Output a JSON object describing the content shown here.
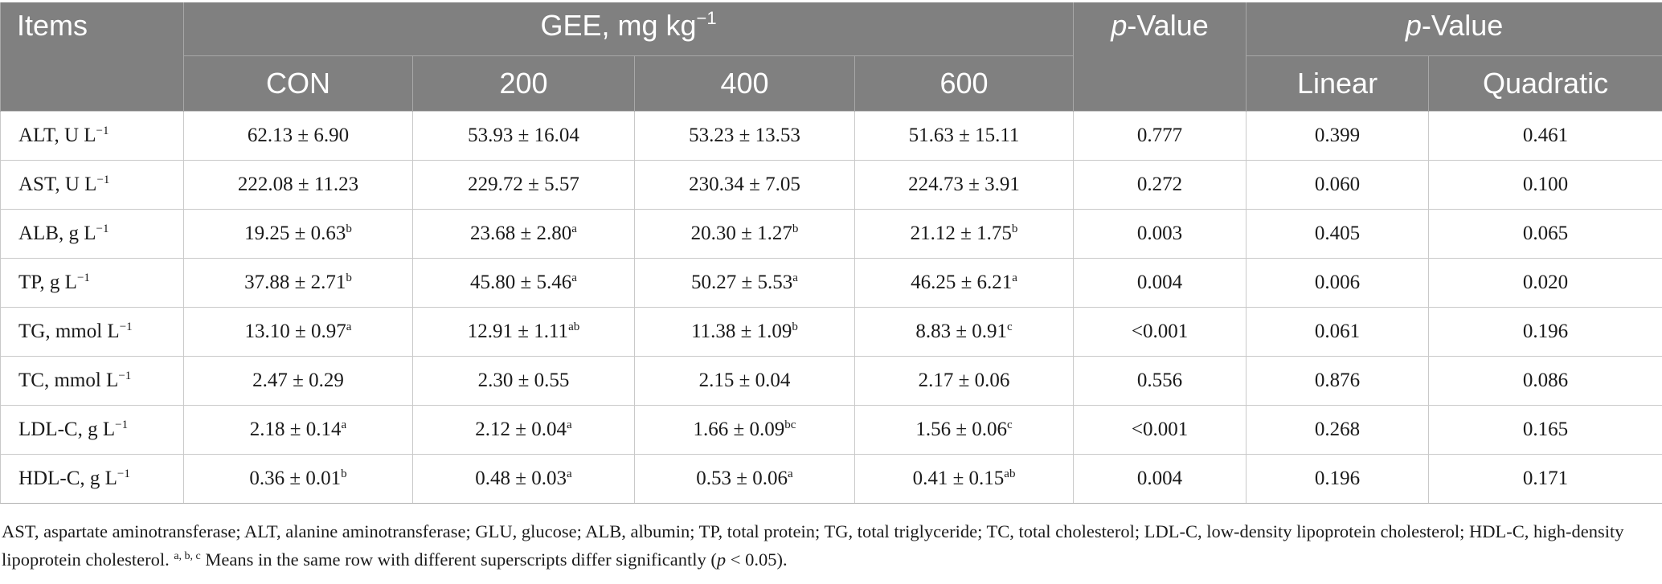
{
  "table": {
    "header": {
      "items": "Items",
      "gee_prefix": "GEE, mg kg",
      "gee_sup": "−1",
      "pvalue_italic": "p",
      "pvalue_rest": "-Value",
      "pvalue2_italic": "p",
      "pvalue2_rest": "-Value",
      "sub": [
        "CON",
        "200",
        "400",
        "600",
        "Linear",
        "Quadratic"
      ]
    },
    "rows": [
      {
        "item": "ALT, U L",
        "item_sup": "−1",
        "con": "62.13 ± 6.90",
        "con_sup": "",
        "g200": "53.93 ± 16.04",
        "g200_sup": "",
        "g400": "53.23 ± 13.53",
        "g400_sup": "",
        "g600": "51.63 ± 15.11",
        "g600_sup": "",
        "p": "0.777",
        "linear": "0.399",
        "quadratic": "0.461"
      },
      {
        "item": "AST, U L",
        "item_sup": "−1",
        "con": "222.08 ± 11.23",
        "con_sup": "",
        "g200": "229.72 ± 5.57",
        "g200_sup": "",
        "g400": "230.34 ± 7.05",
        "g400_sup": "",
        "g600": "224.73 ± 3.91",
        "g600_sup": "",
        "p": "0.272",
        "linear": "0.060",
        "quadratic": "0.100"
      },
      {
        "item": "ALB, g L",
        "item_sup": "−1",
        "con": "19.25 ± 0.63",
        "con_sup": "b",
        "g200": "23.68 ± 2.80",
        "g200_sup": "a",
        "g400": "20.30 ± 1.27",
        "g400_sup": "b",
        "g600": "21.12 ± 1.75",
        "g600_sup": "b",
        "p": "0.003",
        "linear": "0.405",
        "quadratic": "0.065"
      },
      {
        "item": "TP, g L",
        "item_sup": "−1",
        "con": "37.88 ± 2.71",
        "con_sup": "b",
        "g200": "45.80 ± 5.46",
        "g200_sup": "a",
        "g400": "50.27 ± 5.53",
        "g400_sup": "a",
        "g600": "46.25 ± 6.21",
        "g600_sup": "a",
        "p": "0.004",
        "linear": "0.006",
        "quadratic": "0.020"
      },
      {
        "item": "TG, mmol L",
        "item_sup": "−1",
        "con": "13.10 ± 0.97",
        "con_sup": "a",
        "g200": "12.91 ± 1.11",
        "g200_sup": "ab",
        "g400": "11.38 ± 1.09",
        "g400_sup": "b",
        "g600": "8.83 ± 0.91",
        "g600_sup": "c",
        "p": "<0.001",
        "linear": "0.061",
        "quadratic": "0.196"
      },
      {
        "item": "TC, mmol L",
        "item_sup": "−1",
        "con": "2.47 ± 0.29",
        "con_sup": "",
        "g200": "2.30 ± 0.55",
        "g200_sup": "",
        "g400": "2.15 ± 0.04",
        "g400_sup": "",
        "g600": "2.17 ± 0.06",
        "g600_sup": "",
        "p": "0.556",
        "linear": "0.876",
        "quadratic": "0.086"
      },
      {
        "item": "LDL-C, g L",
        "item_sup": "−1",
        "con": "2.18 ± 0.14",
        "con_sup": "a",
        "g200": "2.12 ± 0.04",
        "g200_sup": "a",
        "g400": "1.66 ± 0.09",
        "g400_sup": "bc",
        "g600": "1.56 ± 0.06",
        "g600_sup": "c",
        "p": "<0.001",
        "linear": "0.268",
        "quadratic": "0.165"
      },
      {
        "item": "HDL-C, g L",
        "item_sup": "−1",
        "con": "0.36 ± 0.01",
        "con_sup": "b",
        "g200": "0.48 ± 0.03",
        "g200_sup": "a",
        "g400": "0.53 ± 0.06",
        "g400_sup": "a",
        "g600": "0.41 ± 0.15",
        "g600_sup": "ab",
        "p": "0.004",
        "linear": "0.196",
        "quadratic": "0.171"
      }
    ]
  },
  "footnote": {
    "text1": "AST, aspartate aminotransferase; ALT, alanine aminotransferase; GLU, glucose; ALB, albumin; TP, total protein; TG, total triglyceride; TC, total cholesterol; LDL-C, low-density lipoprotein cholesterol; HDL-C, high-density lipoprotein cholesterol. ",
    "sup": "a, b, c",
    "text2": " Means in the same row with different superscripts differ significantly (",
    "p_italic": "p",
    "text3": " < 0.05)."
  },
  "colors": {
    "header_bg": "#808080",
    "header_text": "#ffffff",
    "grid": "#c9c9c9"
  }
}
